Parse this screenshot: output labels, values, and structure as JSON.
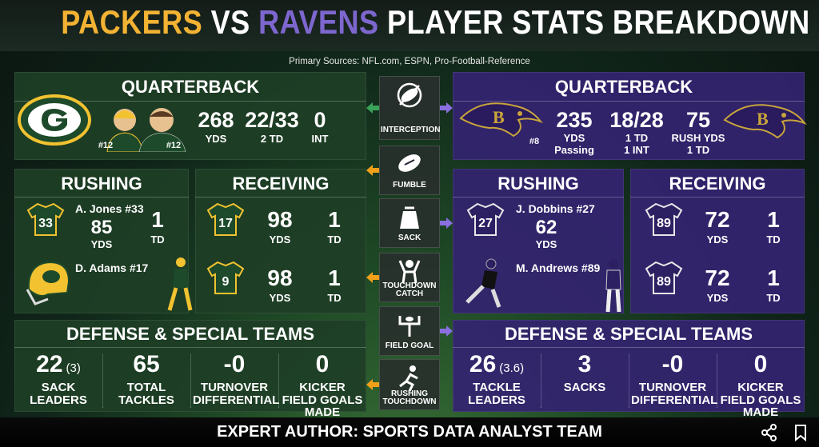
{
  "header": {
    "title_packers": "PACKERS",
    "title_vs": "VS",
    "title_ravens": "RAVENS",
    "title_rest": "PLAYER STATS BREAKDOWN",
    "sources": "Primary Sources: NFL.com, ESPN, Pro-Football-Reference"
  },
  "center_icons": [
    "INTERCEPTION",
    "FUMBLE",
    "SACK",
    "TOUCHDOWN CATCH",
    "FIELD GOAL",
    "RUSHING TOUCHDOWN"
  ],
  "packers": {
    "qb": {
      "title": "QUARTERBACK",
      "jerseys": [
        "#12",
        "#12"
      ],
      "stats": [
        [
          "268",
          "YDS"
        ],
        [
          "22/33",
          "2 TD"
        ],
        [
          "0",
          "INT"
        ]
      ]
    },
    "rushing": {
      "title": "RUSHING",
      "rows": [
        {
          "jersey": "33",
          "name": "A. Jones #33",
          "yds": "85",
          "yds_label": "YDS",
          "td": "1",
          "td_label": "TD"
        },
        {
          "name": "D. Adams #17"
        }
      ]
    },
    "receiving": {
      "title": "RECEIVING",
      "rows": [
        {
          "jersey": "17",
          "yds": "98",
          "yds_label": "YDS",
          "td": "1",
          "td_label": "TD"
        },
        {
          "jersey": "9",
          "yds": "98",
          "yds_label": "YDS",
          "td": "1",
          "td_label": "TD"
        }
      ]
    },
    "defense": {
      "title": "DEFENSE & SPECIAL TEAMS",
      "items": [
        {
          "value": "22",
          "note": "(3)",
          "label": "SACK LEADERS"
        },
        {
          "value": "65",
          "label": "TOTAL TACKLES"
        },
        {
          "value": "-0",
          "label": "TURNOVER DIFFERENTIAL"
        },
        {
          "value": "0",
          "label": "KICKER FIELD GOALS MADE"
        }
      ]
    }
  },
  "ravens": {
    "qb": {
      "title": "QUARTERBACK",
      "jersey": "#8",
      "stats": [
        [
          "235",
          "YDS",
          "Passing"
        ],
        [
          "18/28",
          "1 TD",
          "1 INT"
        ],
        [
          "75",
          "RUSH YDS",
          "1 TD"
        ]
      ]
    },
    "rushing": {
      "title": "RUSHING",
      "rows": [
        {
          "jersey": "27",
          "name": "J. Dobbins #27",
          "yds": "62",
          "yds_label": "YDS"
        },
        {
          "name": "M. Andrews #89"
        }
      ]
    },
    "receiving": {
      "title": "RECEIVING",
      "rows": [
        {
          "jersey": "89",
          "yds": "72",
          "yds_label": "YDS",
          "td": "1",
          "td_label": "TD"
        },
        {
          "jersey": "89",
          "yds": "72",
          "yds_label": "YDS",
          "td": "1",
          "td_label": "TD"
        }
      ]
    },
    "defense": {
      "title": "DEFENSE & SPECIAL TEAMS",
      "items": [
        {
          "value": "26",
          "note": "(3.6)",
          "label": "TACKLE LEADERS"
        },
        {
          "value": "3",
          "label": "SACKS"
        },
        {
          "value": "-0",
          "label": "TURNOVER DIFFERENTIAL"
        },
        {
          "value": "0",
          "label": "KICKER FIELD GOALS MADE"
        }
      ]
    }
  },
  "footer": {
    "text": "EXPERT AUTHOR: SPORTS DATA ANALYST TEAM"
  }
}
